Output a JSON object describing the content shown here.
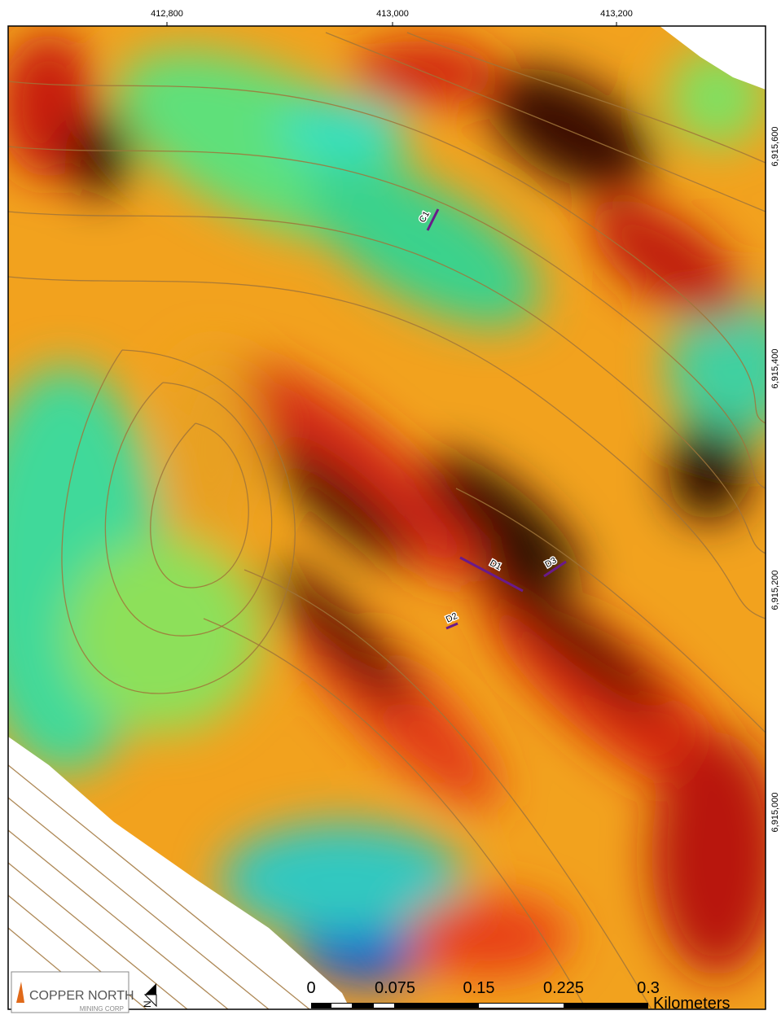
{
  "map": {
    "x_labels": [
      "412,800",
      "413,000",
      "413,200"
    ],
    "y_labels": [
      "6,915,600",
      "6,915,400",
      "6,915,200",
      "6,915,000"
    ],
    "trenches": [
      "C1",
      "D1",
      "D2",
      "D3"
    ]
  },
  "scale_bar": {
    "labels": [
      "0",
      "0.075",
      "0.15",
      "0.225",
      "0.3"
    ],
    "unit": "Kilometers"
  },
  "logo": {
    "name": "COPPER NORTH",
    "subtitle": "MINING CORP"
  },
  "north_arrow": {
    "label": "N"
  }
}
